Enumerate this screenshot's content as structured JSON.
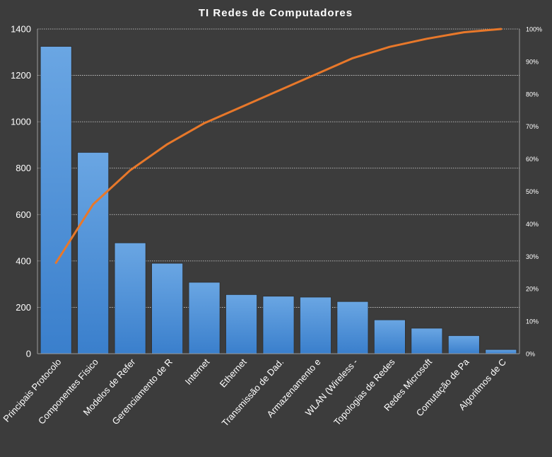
{
  "chart_data": {
    "type": "bar",
    "title": "TI Redes de Computadores",
    "categories": [
      "Principais Protocolo",
      "Componentes Físico",
      "Modelos de Refer",
      "Gerenciamento de R",
      "Internet",
      "Ethernet",
      "Transmissão de Dad.",
      "Armazenamento  e",
      "WLAN (Wireless -",
      "Topologias de Redes",
      "Redes Microsoft",
      "Comutação de Pa",
      "Algoritmos de C"
    ],
    "series": [
      {
        "type": "bar",
        "axis": "left",
        "color": "#4a90d9",
        "values": [
          1325,
          868,
          478,
          390,
          308,
          255,
          248,
          244,
          225,
          146,
          110,
          78,
          18
        ]
      },
      {
        "type": "line",
        "axis": "right",
        "color": "#e8782a",
        "values": [
          0.28,
          0.46,
          0.565,
          0.645,
          0.71,
          0.76,
          0.81,
          0.86,
          0.91,
          0.945,
          0.97,
          0.99,
          1.0
        ]
      }
    ],
    "y_left": {
      "min": 0,
      "max": 1400,
      "ticks": [
        "0",
        "200",
        "400",
        "600",
        "800",
        "1000",
        "1200",
        "1400"
      ]
    },
    "y_right": {
      "min": 0,
      "max": 1,
      "ticks": [
        "0%",
        "10%",
        "20%",
        "30%",
        "40%",
        "50%",
        "60%",
        "70%",
        "80%",
        "90%",
        "100%"
      ]
    },
    "grid": true,
    "legend": false
  }
}
